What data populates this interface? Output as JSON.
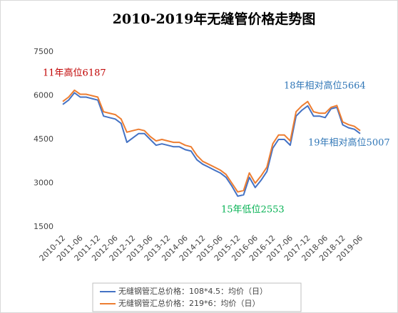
{
  "chart_data": {
    "type": "line",
    "title": "2010-2019年无缝管价格走势图",
    "categories": [
      "2010-12",
      null,
      null,
      "2011-06",
      null,
      null,
      "2011-12",
      null,
      null,
      "2012-06",
      null,
      null,
      "2012-12",
      null,
      null,
      "2013-06",
      null,
      null,
      "2013-12",
      null,
      null,
      "2014-06",
      null,
      null,
      "2014-12",
      null,
      null,
      "2015-06",
      null,
      null,
      "2015-12",
      null,
      null,
      "2016-06",
      null,
      null,
      "2016-12",
      null,
      null,
      "2017-06",
      null,
      null,
      "2017-12",
      null,
      null,
      "2018-06",
      null,
      null,
      "2018-12",
      null,
      null,
      "2019-06"
    ],
    "series": [
      {
        "name": "无缝钢管汇总价格：108*4.5：均价（日）",
        "color": "#4472c4",
        "values": [
          5700,
          5850,
          6100,
          5950,
          5950,
          5900,
          5850,
          5300,
          5250,
          5200,
          5050,
          4400,
          4550,
          4700,
          4700,
          4500,
          4300,
          4350,
          4300,
          4250,
          4250,
          4150,
          4100,
          3800,
          3650,
          3550,
          3450,
          3350,
          3200,
          2900,
          2553,
          2600,
          3200,
          2850,
          3100,
          3400,
          4200,
          4500,
          4500,
          4300,
          5300,
          5500,
          5650,
          5300,
          5300,
          5250,
          5550,
          5600,
          5000,
          4900,
          4850,
          4700
        ]
      },
      {
        "name": "无缝钢管汇总价格：219*6：均价（日）",
        "color": "#ed7d31",
        "values": [
          5800,
          5950,
          6187,
          6050,
          6050,
          6000,
          5950,
          5450,
          5400,
          5350,
          5200,
          4750,
          4800,
          4850,
          4800,
          4600,
          4450,
          4500,
          4450,
          4400,
          4400,
          4300,
          4250,
          3950,
          3750,
          3650,
          3550,
          3450,
          3300,
          3000,
          2700,
          2750,
          3350,
          3000,
          3250,
          3550,
          4350,
          4650,
          4650,
          4450,
          5450,
          5650,
          5800,
          5450,
          5400,
          5400,
          5600,
          5664,
          5100,
          5007,
          4950,
          4800
        ]
      }
    ],
    "ylim": [
      1500,
      7500
    ],
    "yticks": [
      1500,
      3000,
      4500,
      6000,
      7500
    ],
    "annotations": [
      {
        "text": "11年高位6187",
        "color": "#c00000"
      },
      {
        "text": "18年相对高位5664",
        "color": "#2e75b6"
      },
      {
        "text": "15年低位2553",
        "color": "#00b050"
      },
      {
        "text": "19年相对高位5007",
        "color": "#2e75b6"
      }
    ]
  }
}
